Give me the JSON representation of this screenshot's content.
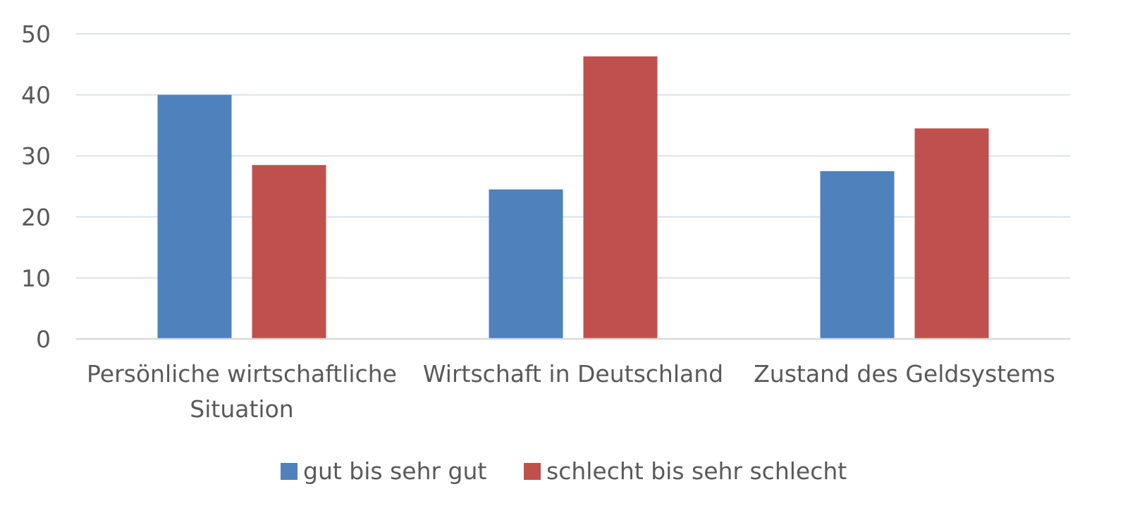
{
  "chart_data": {
    "type": "bar",
    "title": "",
    "xlabel": "",
    "ylabel": "",
    "categories": [
      [
        "Persönliche wirtschaftliche",
        "Situation"
      ],
      [
        "Wirtschaft in Deutschland"
      ],
      [
        "Zustand des Geldsystems"
      ]
    ],
    "series": [
      {
        "name": "gut bis sehr gut",
        "color": "#4F81BD",
        "values": [
          40,
          24.5,
          27.5
        ]
      },
      {
        "name": "schlecht bis sehr schlecht",
        "color": "#C0504D",
        "values": [
          28.5,
          46.3,
          34.5
        ]
      }
    ],
    "ylim": [
      0,
      50
    ],
    "yticks": [
      "0",
      "10",
      "20",
      "30",
      "40",
      "50"
    ],
    "grid": true,
    "gridColor": "#D9E2EE",
    "legend": "bottom"
  }
}
